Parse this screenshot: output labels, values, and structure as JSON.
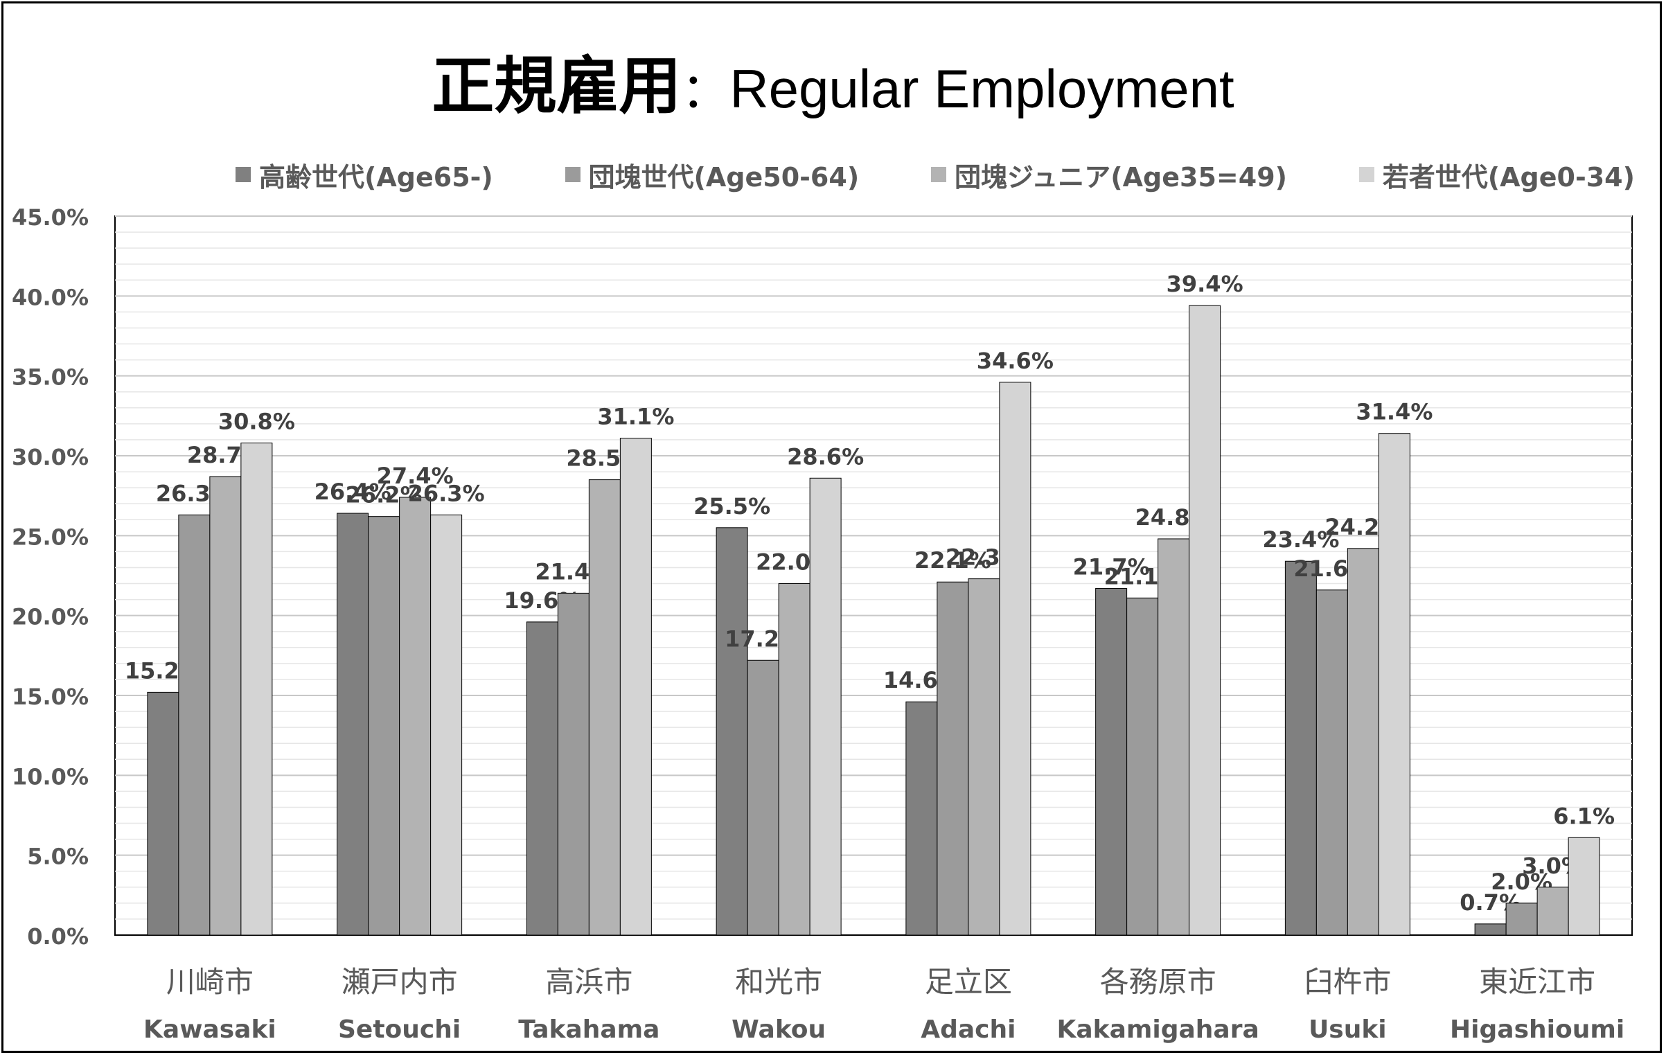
{
  "title": {
    "jp": "正規雇用",
    "separator": "：",
    "en": "Regular Employment"
  },
  "chart_data": {
    "type": "bar",
    "title": "正規雇用：Regular Employment",
    "ylim": [
      0,
      45
    ],
    "y_ticks": [
      "0.0%",
      "5.0%",
      "10.0%",
      "15.0%",
      "20.0%",
      "25.0%",
      "30.0%",
      "35.0%",
      "40.0%",
      "45.0%"
    ],
    "legend_position": "top",
    "grid": true,
    "categories": [
      {
        "jp": "川崎市",
        "en": "Kawasaki"
      },
      {
        "jp": "瀬戸内市",
        "en": "Setouchi"
      },
      {
        "jp": "高浜市",
        "en": "Takahama"
      },
      {
        "jp": "和光市",
        "en": "Wakou"
      },
      {
        "jp": "足立区",
        "en": "Adachi"
      },
      {
        "jp": "各務原市",
        "en": "Kakamigahara"
      },
      {
        "jp": "臼杵市",
        "en": "Usuki"
      },
      {
        "jp": "東近江市",
        "en": "Higashioumi"
      }
    ],
    "series": [
      {
        "name": "高齢世代(Age65-)",
        "color": "#808080",
        "values": [
          15.2,
          26.4,
          19.6,
          25.5,
          14.6,
          21.7,
          23.4,
          0.7
        ],
        "labels": [
          "15.2%",
          "26.4%",
          "19.6%",
          "25.5%",
          "14.6%",
          "21.7%",
          "23.4%",
          "0.7%"
        ]
      },
      {
        "name": "団塊世代(Age50-64)",
        "color": "#9b9b9b",
        "values": [
          26.3,
          26.2,
          21.4,
          17.2,
          22.1,
          21.1,
          21.6,
          2.0
        ],
        "labels": [
          "26.3%",
          "26.2%",
          "21.4%",
          "17.2%",
          "22.1%",
          "21.1%",
          "21.6%",
          "2.0%"
        ]
      },
      {
        "name": "団塊ジュニア(Age35=49)",
        "color": "#b3b3b3",
        "values": [
          28.7,
          27.4,
          28.5,
          22.0,
          22.3,
          24.8,
          24.2,
          3.0
        ],
        "labels": [
          "28.7%",
          "27.4%",
          "28.5%",
          "22.0%",
          "22.3%",
          "24.8%",
          "24.2%",
          "3.0%"
        ]
      },
      {
        "name": "若者世代(Age0-34)",
        "color": "#d4d4d4",
        "values": [
          30.8,
          26.3,
          31.1,
          28.6,
          34.6,
          39.4,
          31.4,
          6.1
        ],
        "labels": [
          "30.8%",
          "26.3%",
          "31.1%",
          "28.6%",
          "34.6%",
          "39.4%",
          "31.4%",
          "6.1%"
        ]
      }
    ]
  }
}
